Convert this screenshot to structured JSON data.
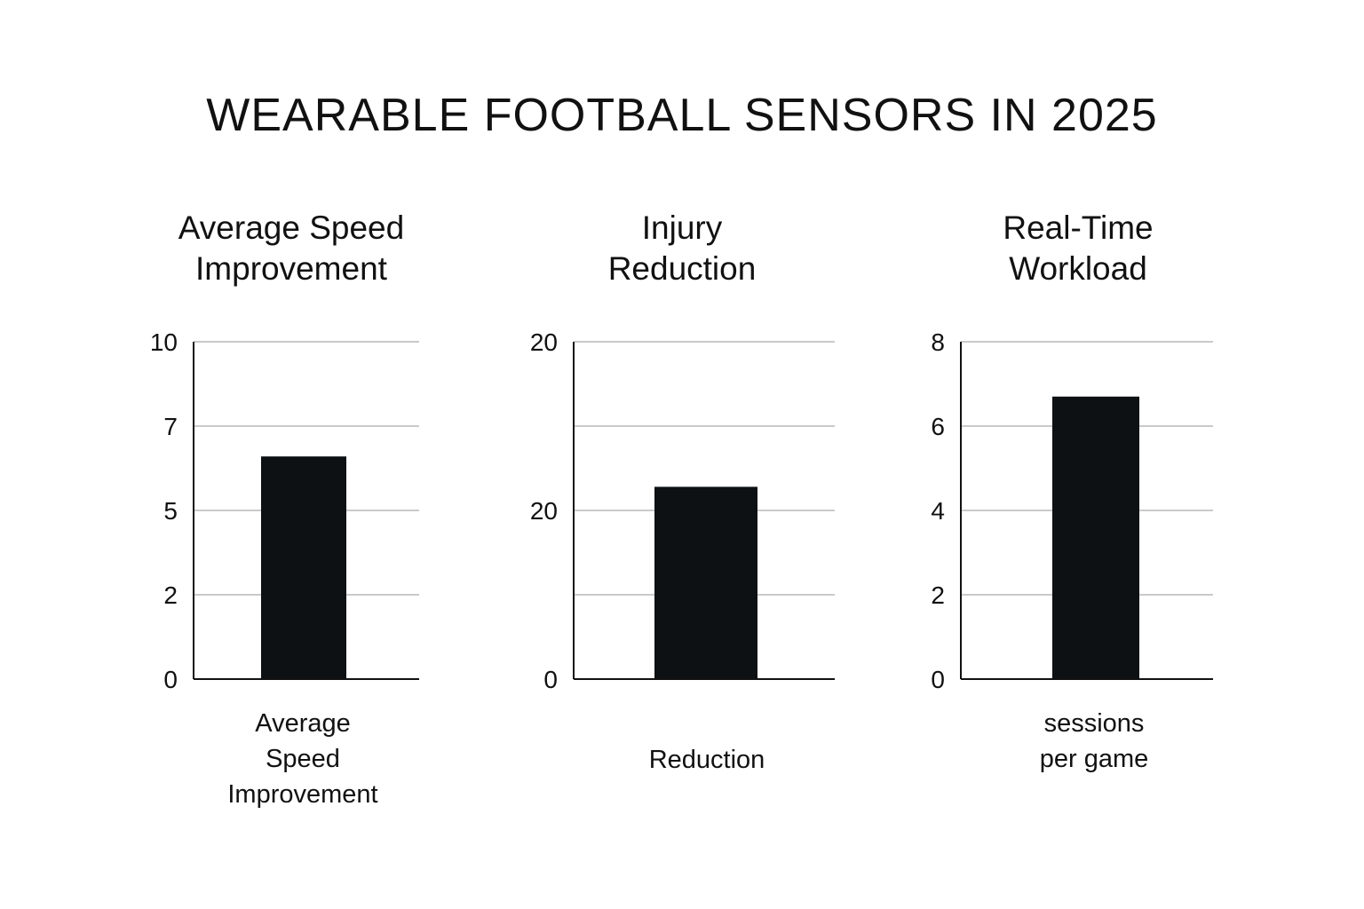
{
  "title": "WEARABLE FOOTBALL SENSORS IN 2025",
  "chart_data": [
    {
      "type": "bar",
      "title_lines": [
        "Average Speed",
        "Improvement"
      ],
      "ytick_labels": [
        "10",
        "7",
        "5",
        "2",
        "0"
      ],
      "ylim": [
        0,
        10
      ],
      "values": [
        6.6
      ],
      "caption_lines": [
        "Average",
        "Speed",
        "Improvement"
      ],
      "color": "#0d1114"
    },
    {
      "type": "bar",
      "title_lines": [
        "Injury",
        "Reduction"
      ],
      "ytick_labels": [
        "20",
        "",
        "20",
        "",
        "0"
      ],
      "ylim": [
        0,
        40
      ],
      "values": [
        22.8
      ],
      "caption_lines": [
        "Reduction"
      ],
      "color": "#0d1114"
    },
    {
      "type": "bar",
      "title_lines": [
        "Real-Time",
        "Workload"
      ],
      "ytick_labels": [
        "8",
        "6",
        "4",
        "2",
        "0"
      ],
      "ylim": [
        0,
        8
      ],
      "values": [
        6.7
      ],
      "caption_lines": [
        "sessions",
        "per game"
      ],
      "color": "#0d1114"
    }
  ]
}
